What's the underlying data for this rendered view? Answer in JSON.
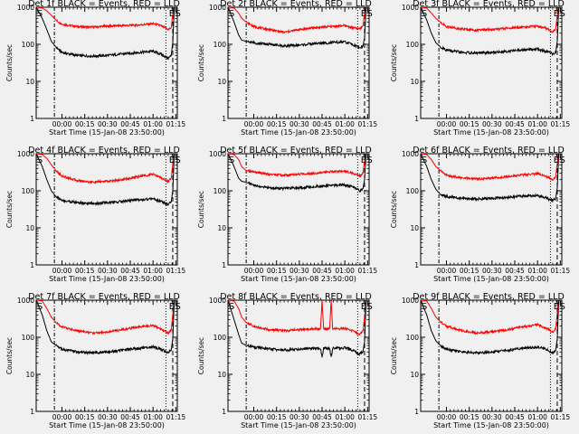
{
  "colors": {
    "background": "#f0f0f0",
    "events": "#000000",
    "lld": "#ff0000",
    "axis": "#000000"
  },
  "chart_data": {
    "type": "line",
    "layout": "3x3 grid of small-multiple time series",
    "xlabel": "Start Time (15-Jan-08 23:50:00)",
    "ylabel": "Counts/sec",
    "yscale": "log",
    "ylim": [
      1,
      1000
    ],
    "yticks": [
      "1",
      "10",
      "100",
      "1000"
    ],
    "xlim_minutes_after_start": [
      -7,
      86
    ],
    "xticks": [
      {
        "minutes": 10,
        "label": "00:00"
      },
      {
        "minutes": 25,
        "label": "00:15"
      },
      {
        "minutes": 40,
        "label": "00:30"
      },
      {
        "minutes": 55,
        "label": "00:45"
      },
      {
        "minutes": 70,
        "label": "01:00"
      },
      {
        "minutes": 85,
        "label": "01:15"
      }
    ],
    "markers": [
      {
        "label": "S",
        "minutes": -6.5
      },
      {
        "label": "E",
        "minutes": 80.5
      },
      {
        "label": "S",
        "minutes": 84.5
      }
    ],
    "vlines": [
      {
        "minutes": 5,
        "style": "dash-dot"
      },
      {
        "minutes": 78.5,
        "style": "dotted"
      },
      {
        "minutes": 83,
        "style": "dashed"
      },
      {
        "minutes": 87,
        "style": "dashed"
      },
      {
        "minutes": 91,
        "style": "dashed"
      }
    ],
    "panels": [
      {
        "title": "Det 1f BLACK = Events, RED = LLD",
        "series": [
          {
            "name": "RED = LLD",
            "color": "#ff0000",
            "x": [
              -7,
              -3,
              0,
              3,
              6,
              10,
              20,
              30,
              40,
              50,
              60,
              70,
              75,
              80,
              82,
              83,
              84,
              86
            ],
            "y": [
              1000,
              950,
              800,
              600,
              450,
              350,
              300,
              290,
              310,
              320,
              330,
              360,
              320,
              250,
              280,
              650,
              1000,
              1000
            ]
          },
          {
            "name": "BLACK = Events",
            "color": "#000000",
            "x": [
              -7,
              -3,
              0,
              3,
              6,
              10,
              20,
              30,
              40,
              50,
              60,
              70,
              75,
              80,
              82,
              83,
              84,
              86
            ],
            "y": [
              1000,
              500,
              250,
              120,
              85,
              60,
              50,
              48,
              50,
              55,
              60,
              65,
              55,
              42,
              50,
              110,
              1000,
              1000
            ]
          }
        ]
      },
      {
        "title": "Det 2f BLACK = Events, RED = LLD",
        "series": [
          {
            "name": "RED = LLD",
            "color": "#ff0000",
            "x": [
              -7,
              -3,
              0,
              2,
              5,
              10,
              20,
              30,
              40,
              50,
              60,
              70,
              75,
              80,
              82,
              83,
              84,
              86
            ],
            "y": [
              1000,
              950,
              700,
              500,
              400,
              300,
              250,
              210,
              250,
              280,
              300,
              320,
              280,
              260,
              320,
              700,
              1000,
              1000
            ]
          },
          {
            "name": "BLACK = Events",
            "color": "#000000",
            "x": [
              -7,
              -3,
              0,
              2,
              5,
              10,
              20,
              30,
              40,
              50,
              60,
              70,
              75,
              80,
              82,
              83,
              84,
              86
            ],
            "y": [
              1000,
              400,
              180,
              130,
              120,
              110,
              100,
              90,
              95,
              105,
              110,
              115,
              100,
              80,
              90,
              150,
              1000,
              1000
            ]
          }
        ]
      },
      {
        "title": "Det 3f BLACK = Events, RED = LLD",
        "series": [
          {
            "name": "RED = LLD",
            "color": "#ff0000",
            "x": [
              -7,
              -3,
              0,
              3,
              6,
              10,
              20,
              30,
              40,
              50,
              60,
              70,
              75,
              80,
              82,
              83,
              84,
              86
            ],
            "y": [
              1000,
              950,
              700,
              500,
              400,
              300,
              260,
              240,
              250,
              270,
              290,
              310,
              280,
              220,
              260,
              600,
              1000,
              1000
            ]
          },
          {
            "name": "BLACK = Events",
            "color": "#000000",
            "x": [
              -7,
              -3,
              0,
              3,
              6,
              10,
              20,
              30,
              40,
              50,
              60,
              70,
              75,
              80,
              82,
              83,
              84,
              86
            ],
            "y": [
              1000,
              450,
              200,
              110,
              85,
              70,
              60,
              58,
              60,
              65,
              70,
              75,
              65,
              55,
              60,
              120,
              1000,
              1000
            ]
          }
        ]
      },
      {
        "title": "Det 4f BLACK = Events, RED = LLD",
        "series": [
          {
            "name": "RED = LLD",
            "color": "#ff0000",
            "x": [
              -7,
              -3,
              0,
              3,
              6,
              10,
              20,
              30,
              40,
              50,
              60,
              70,
              75,
              80,
              82,
              83,
              84,
              86
            ],
            "y": [
              1000,
              950,
              750,
              500,
              350,
              250,
              190,
              170,
              180,
              200,
              240,
              280,
              230,
              180,
              220,
              500,
              1000,
              1000
            ]
          },
          {
            "name": "BLACK = Events",
            "color": "#000000",
            "x": [
              -7,
              -3,
              0,
              3,
              6,
              10,
              20,
              30,
              40,
              50,
              60,
              70,
              75,
              80,
              82,
              83,
              84,
              86
            ],
            "y": [
              1000,
              450,
              200,
              100,
              70,
              55,
              48,
              45,
              48,
              52,
              58,
              60,
              52,
              42,
              50,
              100,
              1000,
              1000
            ]
          }
        ]
      },
      {
        "title": "Det 5f BLACK = Events, RED = LLD",
        "series": [
          {
            "name": "RED = LLD",
            "color": "#ff0000",
            "x": [
              -7,
              -3,
              0,
              2,
              5,
              10,
              20,
              30,
              40,
              50,
              60,
              70,
              75,
              80,
              82,
              83,
              84,
              86
            ],
            "y": [
              1000,
              950,
              700,
              450,
              350,
              320,
              280,
              260,
              280,
              300,
              330,
              340,
              300,
              250,
              300,
              650,
              1000,
              1000
            ]
          },
          {
            "name": "BLACK = Events",
            "color": "#000000",
            "x": [
              -7,
              -3,
              0,
              2,
              5,
              10,
              20,
              30,
              40,
              50,
              60,
              70,
              75,
              80,
              82,
              83,
              84,
              86
            ],
            "y": [
              1000,
              450,
              220,
              180,
              170,
              140,
              120,
              115,
              120,
              130,
              140,
              145,
              130,
              100,
              115,
              200,
              1000,
              1000
            ]
          }
        ]
      },
      {
        "title": "Det 6f BLACK = Events, RED = LLD",
        "series": [
          {
            "name": "RED = LLD",
            "color": "#ff0000",
            "x": [
              -7,
              -3,
              0,
              3,
              6,
              10,
              20,
              30,
              40,
              50,
              60,
              70,
              75,
              80,
              82,
              83,
              84,
              86
            ],
            "y": [
              1000,
              950,
              700,
              450,
              350,
              260,
              220,
              210,
              220,
              240,
              270,
              290,
              250,
              200,
              240,
              550,
              1000,
              1000
            ]
          },
          {
            "name": "BLACK = Events",
            "color": "#000000",
            "x": [
              -7,
              -3,
              0,
              3,
              6,
              10,
              20,
              30,
              40,
              50,
              60,
              70,
              75,
              80,
              82,
              83,
              84,
              86
            ],
            "y": [
              1000,
              450,
              200,
              110,
              80,
              70,
              62,
              60,
              62,
              66,
              72,
              75,
              65,
              55,
              62,
              120,
              1000,
              1000
            ]
          }
        ]
      },
      {
        "title": "Det 7f BLACK = Events, RED = LLD",
        "series": [
          {
            "name": "RED = LLD",
            "color": "#ff0000",
            "x": [
              -7,
              -3,
              0,
              3,
              6,
              10,
              20,
              30,
              40,
              50,
              60,
              70,
              75,
              80,
              82,
              83,
              84,
              86
            ],
            "y": [
              1000,
              950,
              600,
              350,
              250,
              190,
              150,
              130,
              140,
              160,
              190,
              210,
              170,
              130,
              160,
              400,
              1000,
              1000
            ]
          },
          {
            "name": "BLACK = Events",
            "color": "#000000",
            "x": [
              -7,
              -3,
              0,
              3,
              6,
              10,
              20,
              30,
              40,
              50,
              60,
              70,
              75,
              80,
              82,
              83,
              84,
              86
            ],
            "y": [
              1000,
              400,
              150,
              75,
              60,
              48,
              40,
              38,
              40,
              45,
              50,
              55,
              48,
              38,
              45,
              90,
              1000,
              1000
            ]
          }
        ]
      },
      {
        "title": "Det 8f BLACK = Events, RED = LLD",
        "series": [
          {
            "name": "RED = LLD",
            "color": "#ff0000",
            "x": [
              -7,
              -3,
              0,
              2,
              5,
              10,
              20,
              30,
              40,
              50,
              54,
              55,
              56,
              60,
              61,
              62,
              70,
              75,
              80,
              82,
              83,
              84,
              86
            ],
            "y": [
              1000,
              950,
              600,
              350,
              250,
              200,
              160,
              150,
              160,
              170,
              170,
              1000,
              170,
              170,
              1000,
              170,
              170,
              150,
              120,
              150,
              350,
              1000,
              1000
            ]
          },
          {
            "name": "BLACK = Events",
            "color": "#000000",
            "x": [
              -7,
              -3,
              0,
              2,
              5,
              10,
              20,
              30,
              40,
              50,
              54,
              55,
              56,
              60,
              61,
              62,
              70,
              75,
              80,
              82,
              83,
              84,
              86
            ],
            "y": [
              1000,
              300,
              120,
              70,
              60,
              55,
              48,
              45,
              48,
              50,
              50,
              28,
              50,
              50,
              28,
              50,
              52,
              45,
              35,
              42,
              75,
              1000,
              1000
            ]
          }
        ]
      },
      {
        "title": "Det 9f BLACK = Events, RED = LLD",
        "series": [
          {
            "name": "RED = LLD",
            "color": "#ff0000",
            "x": [
              -7,
              -3,
              0,
              3,
              6,
              10,
              20,
              30,
              40,
              50,
              60,
              70,
              75,
              80,
              82,
              83,
              84,
              86
            ],
            "y": [
              1000,
              950,
              600,
              350,
              260,
              200,
              150,
              130,
              140,
              160,
              190,
              220,
              180,
              140,
              170,
              450,
              1000,
              1000
            ]
          },
          {
            "name": "BLACK = Events",
            "color": "#000000",
            "x": [
              -7,
              -3,
              0,
              3,
              6,
              10,
              20,
              30,
              40,
              50,
              60,
              70,
              75,
              80,
              82,
              83,
              84,
              86
            ],
            "y": [
              1000,
              400,
              150,
              80,
              60,
              48,
              40,
              38,
              40,
              44,
              50,
              55,
              48,
              38,
              45,
              90,
              1000,
              1000
            ]
          }
        ]
      }
    ]
  }
}
